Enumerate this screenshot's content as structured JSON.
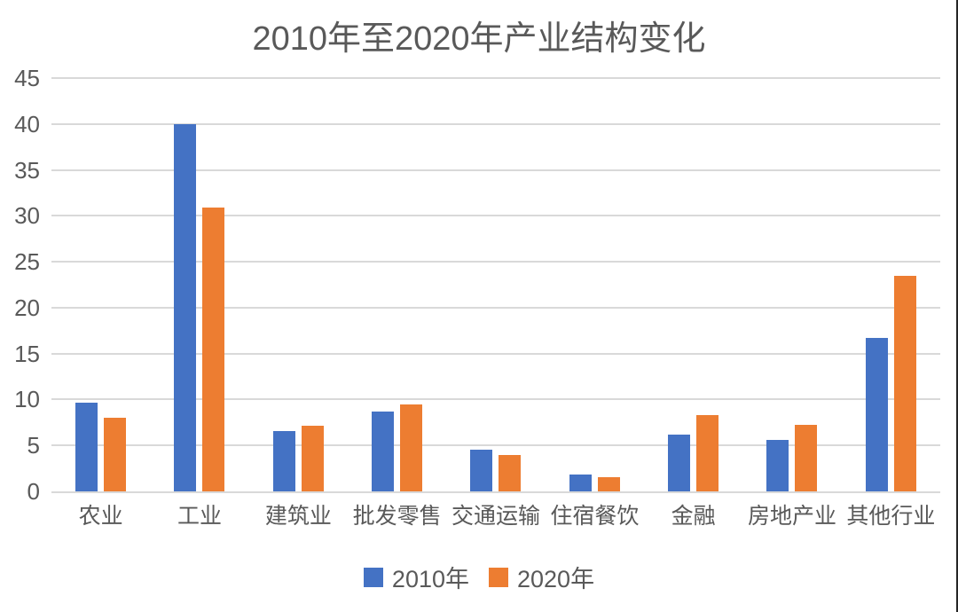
{
  "chart": {
    "title": "2010年至2020年产业结构变化"
  },
  "chart_data": {
    "type": "bar",
    "title": "2010年至2020年产业结构变化",
    "categories": [
      "农业",
      "工业",
      "建筑业",
      "批发零售",
      "交通运输",
      "住宿餐饮",
      "金融",
      "房地产业",
      "其他行业"
    ],
    "series": [
      {
        "name": "2010年",
        "color": "#4472C4",
        "values": [
          9.7,
          40,
          6.6,
          8.7,
          4.5,
          1.8,
          6.2,
          5.6,
          16.7
        ]
      },
      {
        "name": "2020年",
        "color": "#ED7D31",
        "values": [
          8.0,
          30.9,
          7.1,
          9.5,
          4.0,
          1.5,
          8.3,
          7.2,
          23.5
        ]
      }
    ],
    "ylim": [
      0,
      45
    ],
    "ytick_step": 5,
    "ytick_labels": [
      "0",
      "5",
      "10",
      "15",
      "20",
      "25",
      "30",
      "35",
      "40",
      "45"
    ],
    "grid": true,
    "legend_position": "bottom",
    "xlabel": "",
    "ylabel": "",
    "colors": {
      "text": "#595959",
      "gridline": "#D9D9D9",
      "axis_line": "#D9D9D9",
      "background": "#FFFFFF",
      "border_right": "#262626"
    }
  }
}
